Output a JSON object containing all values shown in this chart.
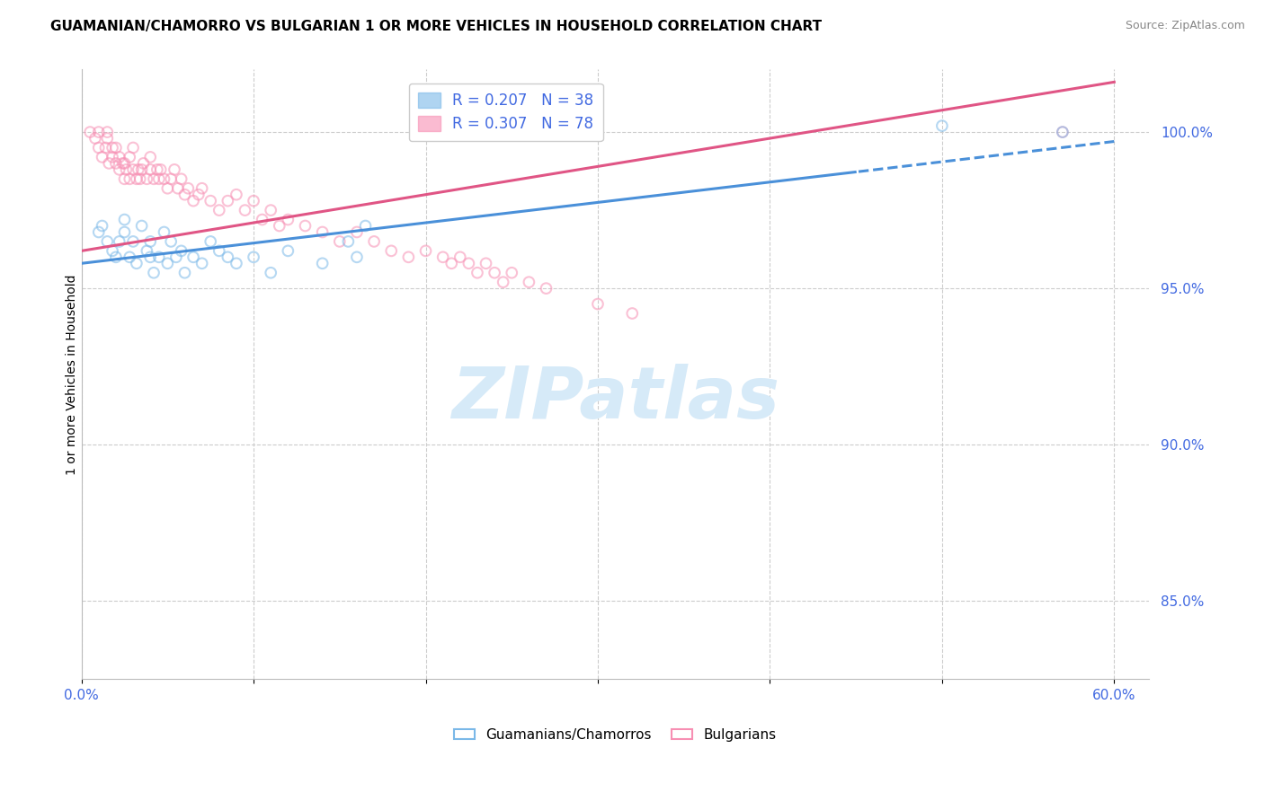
{
  "title": "GUAMANIAN/CHAMORRO VS BULGARIAN 1 OR MORE VEHICLES IN HOUSEHOLD CORRELATION CHART",
  "source": "Source: ZipAtlas.com",
  "ylabel": "1 or more Vehicles in Household",
  "yticks": [
    85.0,
    90.0,
    95.0,
    100.0
  ],
  "xticks": [
    0.0,
    0.1,
    0.2,
    0.3,
    0.4,
    0.5,
    0.6
  ],
  "xlim": [
    0.0,
    0.62
  ],
  "ylim": [
    82.5,
    102.0
  ],
  "legend_r_entries": [
    {
      "label": "R = 0.207   N = 38",
      "color": "#7ab8e8"
    },
    {
      "label": "R = 0.307   N = 78",
      "color": "#f78fb3"
    }
  ],
  "legend_labels": [
    "Guamanians/Chamorros",
    "Bulgarians"
  ],
  "watermark_text": "ZIPatlas",
  "guamanian_color": "#7ab8e8",
  "bulgarian_color": "#f78fb3",
  "guamanian_line_color": "#4a90d9",
  "bulgarian_line_color": "#e05585",
  "title_fontsize": 11,
  "source_fontsize": 9,
  "tick_label_color": "#4169e1",
  "watermark_color": "#d6eaf8",
  "marker_size": 70,
  "marker_alpha": 0.55,
  "guamanian_x": [
    0.01,
    0.012,
    0.015,
    0.018,
    0.02,
    0.022,
    0.025,
    0.025,
    0.028,
    0.03,
    0.032,
    0.035,
    0.038,
    0.04,
    0.04,
    0.042,
    0.045,
    0.048,
    0.05,
    0.052,
    0.055,
    0.058,
    0.06,
    0.065,
    0.07,
    0.075,
    0.08,
    0.085,
    0.09,
    0.1,
    0.11,
    0.12,
    0.14,
    0.155,
    0.16,
    0.165,
    0.5,
    0.57
  ],
  "guamanian_y": [
    96.8,
    97.0,
    96.5,
    96.2,
    96.0,
    96.5,
    96.8,
    97.2,
    96.0,
    96.5,
    95.8,
    97.0,
    96.2,
    96.5,
    96.0,
    95.5,
    96.0,
    96.8,
    95.8,
    96.5,
    96.0,
    96.2,
    95.5,
    96.0,
    95.8,
    96.5,
    96.2,
    96.0,
    95.8,
    96.0,
    95.5,
    96.2,
    95.8,
    96.5,
    96.0,
    97.0,
    100.2,
    100.0
  ],
  "bulgarian_x": [
    0.005,
    0.008,
    0.01,
    0.01,
    0.012,
    0.014,
    0.015,
    0.015,
    0.016,
    0.018,
    0.018,
    0.02,
    0.02,
    0.022,
    0.022,
    0.024,
    0.025,
    0.025,
    0.026,
    0.028,
    0.028,
    0.03,
    0.03,
    0.032,
    0.033,
    0.034,
    0.035,
    0.036,
    0.038,
    0.04,
    0.04,
    0.042,
    0.044,
    0.045,
    0.046,
    0.048,
    0.05,
    0.052,
    0.054,
    0.056,
    0.058,
    0.06,
    0.062,
    0.065,
    0.068,
    0.07,
    0.075,
    0.08,
    0.085,
    0.09,
    0.095,
    0.1,
    0.105,
    0.11,
    0.115,
    0.12,
    0.13,
    0.14,
    0.15,
    0.16,
    0.17,
    0.18,
    0.19,
    0.2,
    0.21,
    0.215,
    0.22,
    0.225,
    0.23,
    0.235,
    0.24,
    0.245,
    0.25,
    0.26,
    0.27,
    0.3,
    0.32,
    0.57
  ],
  "bulgarian_y": [
    100.0,
    99.8,
    99.5,
    100.0,
    99.2,
    99.5,
    99.8,
    100.0,
    99.0,
    99.2,
    99.5,
    99.0,
    99.5,
    98.8,
    99.2,
    99.0,
    98.5,
    99.0,
    98.8,
    99.2,
    98.5,
    98.8,
    99.5,
    98.5,
    98.8,
    98.5,
    98.8,
    99.0,
    98.5,
    98.8,
    99.2,
    98.5,
    98.8,
    98.5,
    98.8,
    98.5,
    98.2,
    98.5,
    98.8,
    98.2,
    98.5,
    98.0,
    98.2,
    97.8,
    98.0,
    98.2,
    97.8,
    97.5,
    97.8,
    98.0,
    97.5,
    97.8,
    97.2,
    97.5,
    97.0,
    97.2,
    97.0,
    96.8,
    96.5,
    96.8,
    96.5,
    96.2,
    96.0,
    96.2,
    96.0,
    95.8,
    96.0,
    95.8,
    95.5,
    95.8,
    95.5,
    95.2,
    95.5,
    95.2,
    95.0,
    94.5,
    94.2,
    100.0
  ]
}
